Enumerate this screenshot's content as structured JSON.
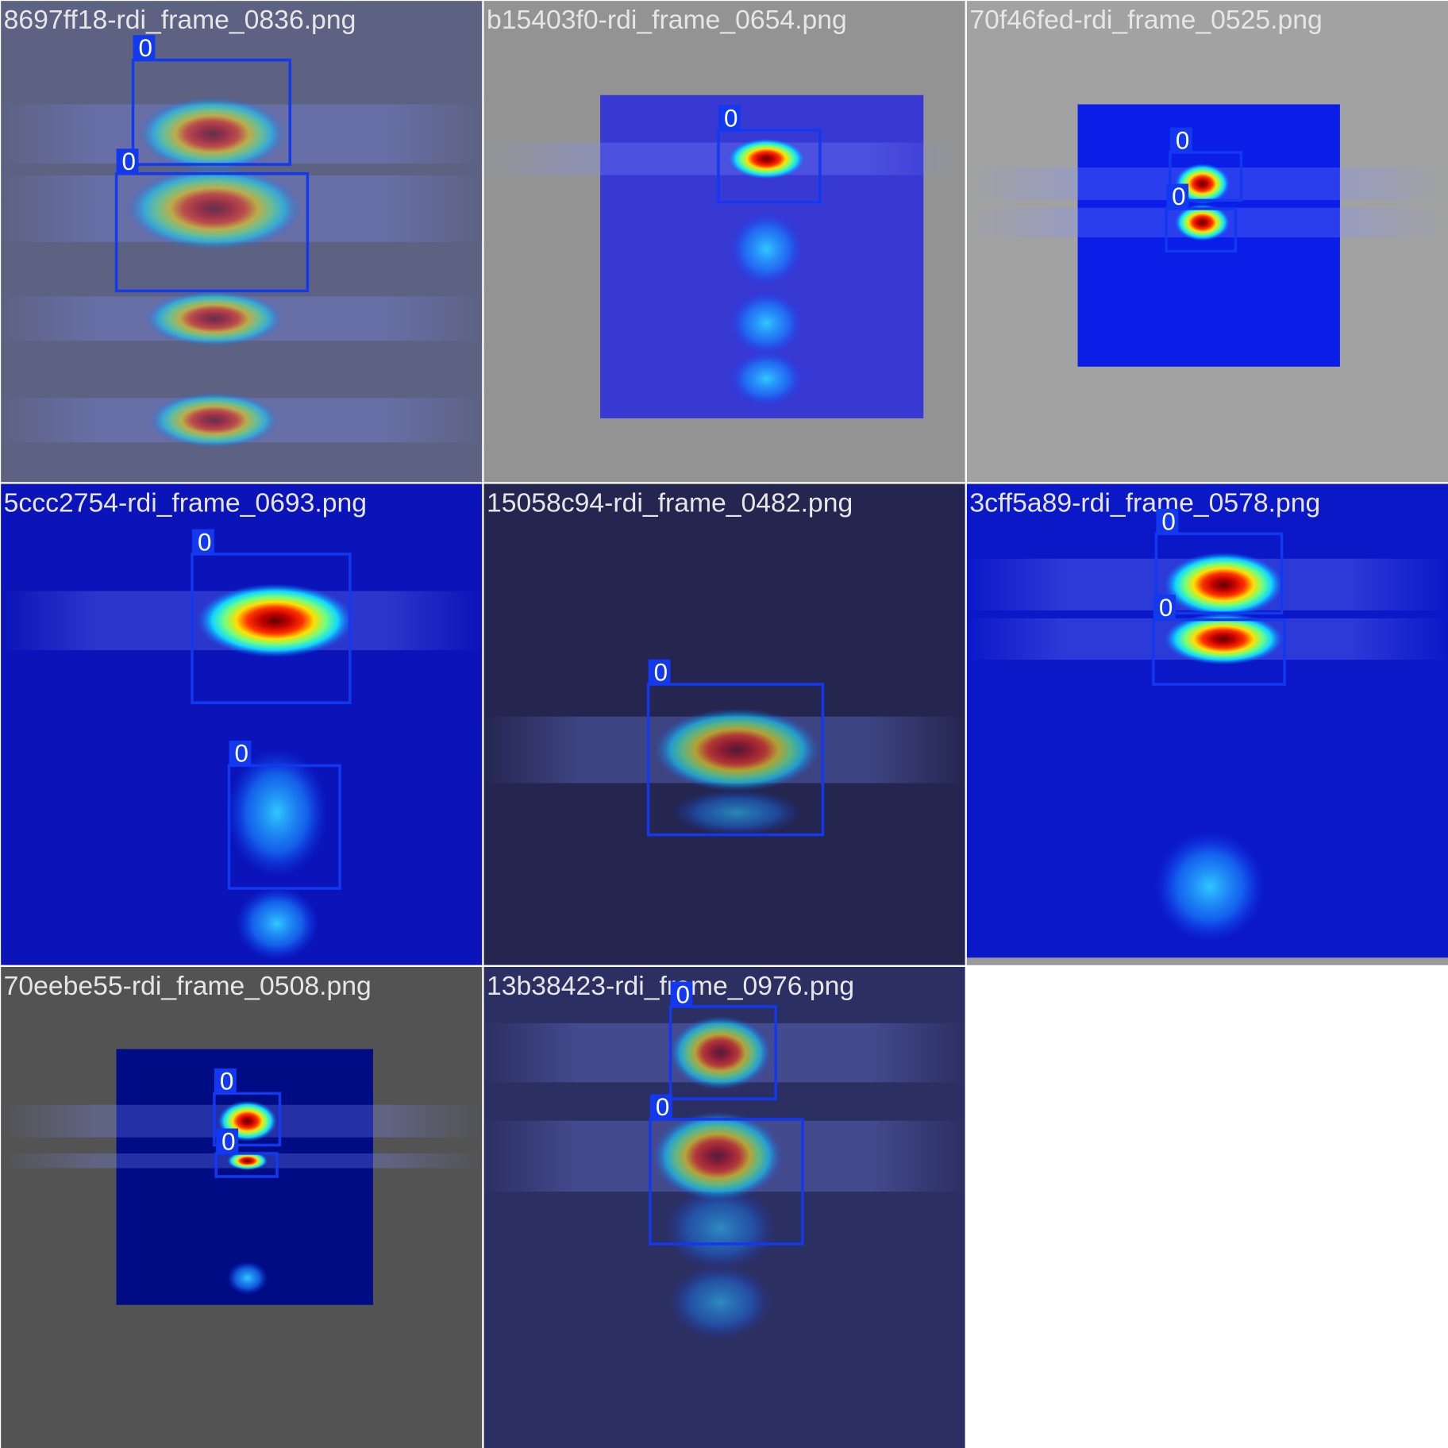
{
  "tiles": [
    {
      "filename": "8697ff18-rdi_frame_0836.png",
      "boxes": [
        {
          "label": "0"
        },
        {
          "label": "0"
        }
      ]
    },
    {
      "filename": "b15403f0-rdi_frame_0654.png",
      "boxes": [
        {
          "label": "0"
        }
      ]
    },
    {
      "filename": "70f46fed-rdi_frame_0525.png",
      "boxes": [
        {
          "label": "0"
        },
        {
          "label": "0"
        }
      ]
    },
    {
      "filename": "5ccc2754-rdi_frame_0693.png",
      "boxes": [
        {
          "label": "0"
        },
        {
          "label": "0"
        }
      ]
    },
    {
      "filename": "15058c94-rdi_frame_0482.png",
      "boxes": [
        {
          "label": "0"
        }
      ]
    },
    {
      "filename": "3cff5a89-rdi_frame_0578.png",
      "boxes": [
        {
          "label": "0"
        },
        {
          "label": "0"
        }
      ]
    },
    {
      "filename": "70eebe55-rdi_frame_0508.png",
      "boxes": [
        {
          "label": "0"
        },
        {
          "label": "0"
        }
      ]
    },
    {
      "filename": "13b38423-rdi_frame_0976.png",
      "boxes": [
        {
          "label": "0"
        },
        {
          "label": "0"
        }
      ]
    }
  ]
}
